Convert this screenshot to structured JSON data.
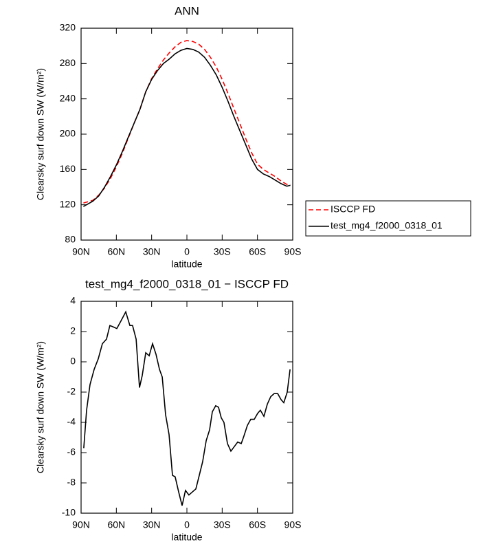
{
  "chart_data": [
    {
      "type": "line",
      "title": "ANN",
      "xlabel": "latitude",
      "ylabel": "Clearsky surf down SW (W/m²)",
      "x": [
        88,
        80,
        75,
        70,
        65,
        60,
        55,
        50,
        45,
        40,
        35,
        30,
        25,
        20,
        15,
        10,
        5,
        0,
        -5,
        -10,
        -15,
        -20,
        -25,
        -30,
        -35,
        -40,
        -45,
        -50,
        -55,
        -60,
        -65,
        -70,
        -75,
        -80,
        -85,
        -88
      ],
      "series": [
        {
          "name": "ISCCP FD",
          "color": "#ff0000",
          "dash": true,
          "values": [
            122,
            125,
            131,
            139,
            150,
            163,
            178,
            195,
            212,
            228,
            248,
            263,
            274,
            284,
            292,
            299,
            304,
            306,
            305,
            302,
            296,
            287,
            276,
            262,
            246,
            229,
            212,
            195,
            179,
            166,
            160,
            156,
            152,
            147,
            143,
            143
          ]
        },
        {
          "name": "test_mg4_f2000_0318_01",
          "color": "#000000",
          "dash": false,
          "values": [
            118,
            124,
            130,
            140,
            152,
            165,
            180,
            196,
            212,
            228,
            248,
            262,
            272,
            280,
            285,
            291,
            295,
            297,
            296,
            293,
            287,
            278,
            267,
            253,
            237,
            220,
            204,
            188,
            172,
            160,
            155,
            152,
            148,
            144,
            141,
            142
          ]
        }
      ],
      "xlim": [
        90,
        -90
      ],
      "xticks": [
        {
          "value": 90,
          "label": "90N"
        },
        {
          "value": 60,
          "label": "60N"
        },
        {
          "value": 30,
          "label": "30N"
        },
        0,
        {
          "value": -30,
          "label": "30S"
        },
        {
          "value": -60,
          "label": "60S"
        },
        {
          "value": -90,
          "label": "90S"
        }
      ],
      "ylim": [
        80,
        320
      ],
      "yticks": [
        80,
        120,
        160,
        200,
        240,
        280,
        320
      ],
      "legend": "outside right"
    },
    {
      "type": "line",
      "title": "test_mg4_f2000_0318_01 − ISCCP FD",
      "xlabel": "latitude",
      "ylabel": "Clearsky surf down SW (W/m²)",
      "x": [
        87.7,
        85.3,
        82.4,
        78.9,
        75.4,
        71.9,
        68.4,
        65.5,
        62.5,
        59.6,
        56.1,
        52,
        48.5,
        46.2,
        43.2,
        40.3,
        38,
        35,
        32.1,
        29.2,
        26.3,
        23.3,
        21,
        18.1,
        15.2,
        12.3,
        10,
        7,
        4.1,
        1.2,
        -1.7,
        -4.6,
        -7.6,
        -10.5,
        -13.4,
        -16.4,
        -19.3,
        -21.6,
        -24.5,
        -26.9,
        -29.2,
        -31.5,
        -34.5,
        -37.4,
        -40.3,
        -43.2,
        -46.2,
        -48.5,
        -51.4,
        -54.3,
        -57.3,
        -60.2,
        -62.5,
        -65.5,
        -68.4,
        -71.3,
        -74.2,
        -77.2,
        -80.1,
        -82.4,
        -85.3,
        -87.7
      ],
      "series": [
        {
          "name": "test_mg4_f2000_0318_01 − ISCCP FD",
          "color": "#000000",
          "dash": false,
          "values": [
            -5.7,
            -3.2,
            -1.5,
            -0.5,
            0.2,
            1.2,
            1.5,
            2.4,
            2.3,
            2.2,
            2.7,
            3.3,
            2.4,
            2.4,
            1.5,
            -1.7,
            -0.9,
            0.6,
            0.4,
            1.2,
            0.5,
            -0.5,
            -1.0,
            -3.5,
            -4.8,
            -7.5,
            -7.6,
            -8.6,
            -9.5,
            -8.5,
            -8.8,
            -8.6,
            -8.4,
            -7.5,
            -6.6,
            -5.2,
            -4.5,
            -3.3,
            -2.9,
            -3.0,
            -3.7,
            -4.0,
            -5.4,
            -5.9,
            -5.6,
            -5.3,
            -5.4,
            -4.9,
            -4.2,
            -3.8,
            -3.8,
            -3.4,
            -3.2,
            -3.6,
            -2.8,
            -2.3,
            -2.1,
            -2.1,
            -2.5,
            -2.7,
            -2.0,
            -0.5
          ]
        }
      ],
      "xlim": [
        90,
        -90
      ],
      "xticks": [
        {
          "value": 90,
          "label": "90N"
        },
        {
          "value": 60,
          "label": "60N"
        },
        {
          "value": 30,
          "label": "30N"
        },
        0,
        {
          "value": -30,
          "label": "30S"
        },
        {
          "value": -60,
          "label": "60S"
        },
        {
          "value": -90,
          "label": "90S"
        }
      ],
      "ylim": [
        -10,
        4
      ],
      "yticks": [
        -10,
        -8,
        -6,
        -4,
        -2,
        0,
        2,
        4
      ]
    }
  ]
}
